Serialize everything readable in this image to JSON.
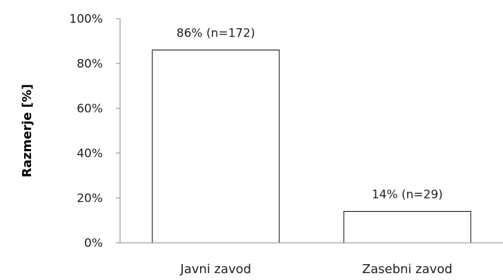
{
  "chart_data": {
    "type": "bar",
    "title": "",
    "xlabel": "",
    "ylabel": "Razmerje [%]",
    "categories": [
      "Javni zavod",
      "Zasebni zavod"
    ],
    "values": [
      86,
      14
    ],
    "data_labels": [
      "86% (n=172)",
      "14% (n=29)"
    ],
    "ylim": [
      0,
      100
    ],
    "yticks": [
      0,
      20,
      40,
      60,
      80,
      100
    ],
    "ytick_labels": [
      "0%",
      "20%",
      "40%",
      "60%",
      "80%",
      "100%"
    ],
    "grid": false,
    "legend": "none",
    "colors": {
      "bar_fill": "#ffffff",
      "bar_stroke": "#000000",
      "axis": "#868686",
      "text": "#1f1f1f"
    }
  }
}
